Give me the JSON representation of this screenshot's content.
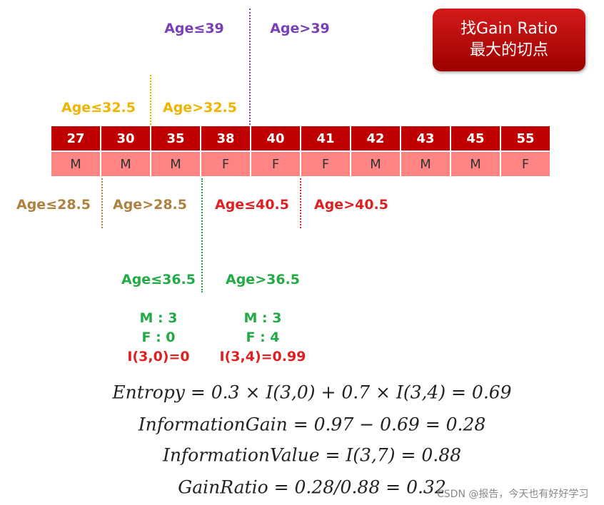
{
  "badge": {
    "lines": [
      "找Gain Ratio",
      "最大的切点"
    ]
  },
  "table": {
    "ages": [
      27,
      30,
      35,
      38,
      40,
      41,
      42,
      43,
      45,
      55
    ],
    "labels": [
      "M",
      "M",
      "M",
      "F",
      "F",
      "F",
      "M",
      "M",
      "M",
      "F"
    ]
  },
  "splits": [
    {
      "left": "Age≤39",
      "right": "Age>39"
    },
    {
      "left": "Age≤32.5",
      "right": "Age>32.5"
    },
    {
      "left": "Age≤28.5",
      "right": "Age>28.5"
    },
    {
      "left": "Age≤40.5",
      "right": "Age>40.5"
    },
    {
      "left": "Age≤36.5",
      "right": "Age>36.5"
    }
  ],
  "counts": {
    "left": [
      "M : 3",
      "F : 0",
      "I(3,0)=0"
    ],
    "right": [
      "M : 3",
      "F : 4",
      "I(3,4)=0.99"
    ]
  },
  "formulas": [
    "Entropy = 0.3 × I(3,0) + 0.7 × I(3,4) = 0.69",
    "InformationGain = 0.97 − 0.69 = 0.28",
    "InformationValue = I(3,7) = 0.88",
    "GainRatio = 0.28/0.88 = 0.32"
  ],
  "watermark": "CSDN @报告，今天也有好好学习"
}
